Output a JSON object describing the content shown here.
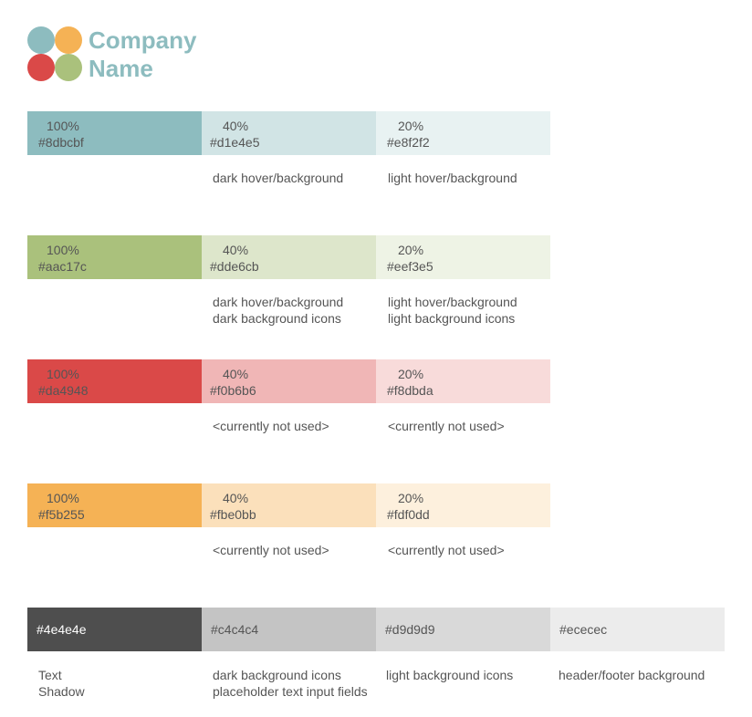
{
  "logo": {
    "line1": "Company",
    "line2": "Name",
    "colors": [
      "#8dbcbf",
      "#f5b255",
      "#da4948",
      "#aac17c"
    ]
  },
  "palette": [
    {
      "swatches": [
        {
          "pct": "100%",
          "hex": "#8dbcbf",
          "fill": "#8dbcbf"
        },
        {
          "pct": "40%",
          "hex": "#d1e4e5",
          "fill": "#d1e4e5"
        },
        {
          "pct": "20%",
          "hex": "#e8f2f2",
          "fill": "#e8f2f2"
        }
      ],
      "notes_mid": [
        "dark hover/background"
      ],
      "notes_last": [
        "light hover/background"
      ]
    },
    {
      "swatches": [
        {
          "pct": "100%",
          "hex": "#aac17c",
          "fill": "#aac17c"
        },
        {
          "pct": "40%",
          "hex": "#dde6cb",
          "fill": "#dde6cb"
        },
        {
          "pct": "20%",
          "hex": "#eef3e5",
          "fill": "#eef3e5"
        }
      ],
      "notes_mid": [
        "dark hover/background",
        "dark background icons"
      ],
      "notes_last": [
        "light hover/background",
        "light background icons"
      ]
    },
    {
      "swatches": [
        {
          "pct": "100%",
          "hex": "#da4948",
          "fill": "#da4948"
        },
        {
          "pct": "40%",
          "hex": "#f0b6b6",
          "fill": "#f0b6b6"
        },
        {
          "pct": "20%",
          "hex": "#f8dbda",
          "fill": "#f8dbda"
        }
      ],
      "notes_mid": [
        "<currently not used>"
      ],
      "notes_last": [
        "<currently not used>"
      ]
    },
    {
      "swatches": [
        {
          "pct": "100%",
          "hex": "#f5b255",
          "fill": "#f5b255"
        },
        {
          "pct": "40%",
          "hex": "#fbe0bb",
          "fill": "#fbe0bb"
        },
        {
          "pct": "20%",
          "hex": "#fdf0dd",
          "fill": "#fdf0dd"
        }
      ],
      "notes_mid": [
        "<currently not used>"
      ],
      "notes_last": [
        "<currently not used>"
      ]
    }
  ],
  "grays": [
    {
      "hex": "#4e4e4e",
      "fill": "#4e4e4e",
      "text_color": "#ffffff",
      "notes": [
        "Text",
        "Shadow"
      ]
    },
    {
      "hex": "#c4c4c4",
      "fill": "#c4c4c4",
      "text_color": "#555555",
      "notes": [
        "dark background icons",
        "placeholder text input fields"
      ]
    },
    {
      "hex": "#d9d9d9",
      "fill": "#d9d9d9",
      "text_color": "#555555",
      "notes": [
        "light background icons"
      ]
    },
    {
      "hex": "#ececec",
      "fill": "#ececec",
      "text_color": "#555555",
      "notes": [
        "header/footer background"
      ]
    }
  ]
}
